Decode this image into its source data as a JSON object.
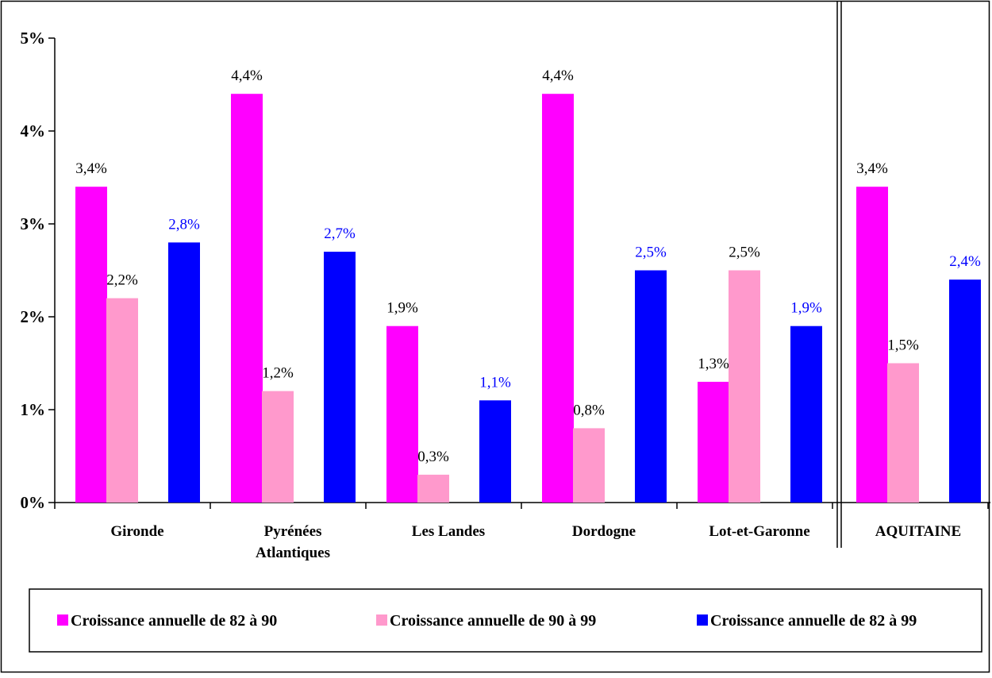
{
  "chart_data": {
    "type": "bar",
    "title": "",
    "xlabel": "",
    "ylabel": "",
    "ylim": [
      0,
      5
    ],
    "ytick_values": [
      0,
      1,
      2,
      3,
      4,
      5
    ],
    "ytick_labels": [
      "0%",
      "1%",
      "2%",
      "3%",
      "4%",
      "5%"
    ],
    "grid": false,
    "legend_position": "bottom",
    "categories": [
      [
        "Gironde"
      ],
      [
        "Pyrénées",
        "Atlantiques"
      ],
      [
        "Les Landes"
      ],
      [
        "Dordogne"
      ],
      [
        "Lot-et-Garonne"
      ],
      [
        "AQUITAINE"
      ]
    ],
    "separator_before_category": 5,
    "series": [
      {
        "name": "Croissance annuelle de 82 à 90",
        "color": "#ff00ff",
        "label_color": "#000000",
        "values": [
          3.4,
          4.4,
          1.9,
          4.4,
          1.3,
          3.4
        ],
        "labels": [
          "3,4%",
          "4,4%",
          "1,9%",
          "4,4%",
          "1,3%",
          "3,4%"
        ]
      },
      {
        "name": "Croissance annuelle de 90 à 99",
        "color": "#ff99cc",
        "label_color": "#000000",
        "values": [
          2.2,
          1.2,
          0.3,
          0.8,
          2.5,
          1.5
        ],
        "labels": [
          "2,2%",
          "1,2%",
          "0,3%",
          "0,8%",
          "2,5%",
          "1,5%"
        ]
      },
      {
        "name": "Croissance annuelle de 82 à 99",
        "color": "#0000ff",
        "label_color": "#0000ff",
        "values": [
          2.8,
          2.7,
          1.1,
          2.5,
          1.9,
          2.4
        ],
        "labels": [
          "2,8%",
          "2,7%",
          "1,1%",
          "2,5%",
          "1,9%",
          "2,4%"
        ]
      }
    ]
  }
}
